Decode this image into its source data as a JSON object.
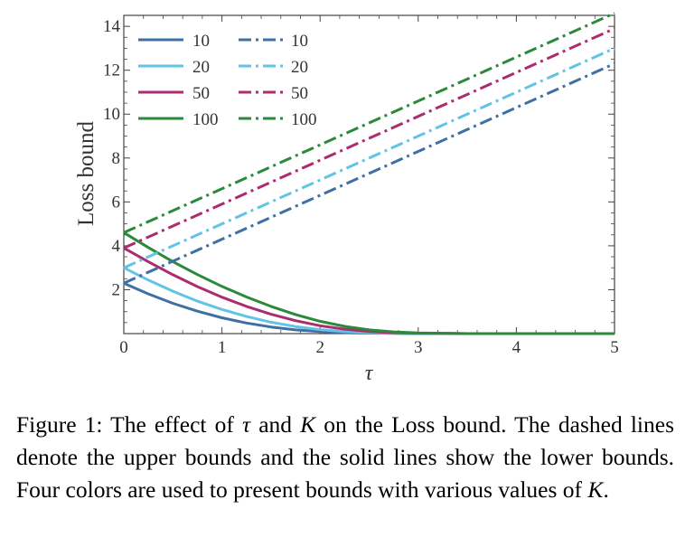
{
  "chart_data": {
    "type": "line",
    "title": "",
    "xlabel": "τ",
    "ylabel": "Loss bound",
    "xlim": [
      0,
      5
    ],
    "ylim": [
      0,
      14.5
    ],
    "xticks": [
      "0",
      "1",
      "2",
      "3",
      "4",
      "5"
    ],
    "yticks": [
      "2",
      "4",
      "6",
      "8",
      "10",
      "12",
      "14"
    ],
    "legend_position": "top-left",
    "colors": {
      "10": "#3f6fa3",
      "20": "#62c3e6",
      "50": "#ad2c6f",
      "100": "#2b8a3a"
    },
    "lower_series": [
      {
        "name": "10",
        "style": "solid",
        "x": [
          0,
          0.25,
          0.5,
          0.75,
          1,
          1.25,
          1.5,
          1.75,
          2,
          2.25,
          2.5,
          2.75,
          3,
          3.5,
          4,
          4.5,
          5
        ],
        "y": [
          2.3,
          1.81,
          1.38,
          1.02,
          0.72,
          0.48,
          0.3,
          0.17,
          0.09,
          0.04,
          0.02,
          0.01,
          0,
          0,
          0,
          0,
          0
        ]
      },
      {
        "name": "20",
        "style": "solid",
        "x": [
          0,
          0.25,
          0.5,
          0.75,
          1,
          1.25,
          1.5,
          1.75,
          2,
          2.25,
          2.5,
          2.75,
          3,
          3.5,
          4,
          4.5,
          5
        ],
        "y": [
          3.0,
          2.44,
          1.93,
          1.48,
          1.1,
          0.78,
          0.52,
          0.32,
          0.18,
          0.09,
          0.04,
          0.02,
          0.01,
          0,
          0,
          0,
          0
        ]
      },
      {
        "name": "50",
        "style": "solid",
        "x": [
          0,
          0.25,
          0.5,
          0.75,
          1,
          1.25,
          1.5,
          1.75,
          2,
          2.25,
          2.5,
          2.75,
          3,
          3.5,
          4,
          4.5,
          5
        ],
        "y": [
          3.9,
          3.27,
          2.68,
          2.14,
          1.66,
          1.24,
          0.88,
          0.59,
          0.36,
          0.2,
          0.1,
          0.04,
          0.02,
          0,
          0,
          0,
          0
        ]
      },
      {
        "name": "100",
        "style": "solid",
        "x": [
          0,
          0.25,
          0.5,
          0.75,
          1,
          1.25,
          1.5,
          1.75,
          2,
          2.25,
          2.5,
          2.75,
          3,
          3.5,
          4,
          4.5,
          5
        ],
        "y": [
          4.6,
          3.92,
          3.28,
          2.69,
          2.15,
          1.67,
          1.24,
          0.87,
          0.56,
          0.33,
          0.17,
          0.08,
          0.03,
          0,
          0,
          0,
          0
        ]
      }
    ],
    "upper_series": [
      {
        "name": "10",
        "style": "dash-dot",
        "x": [
          0,
          5
        ],
        "y": [
          2.3,
          12.3
        ]
      },
      {
        "name": "20",
        "style": "dash-dot",
        "x": [
          0,
          5
        ],
        "y": [
          3.0,
          13.0
        ]
      },
      {
        "name": "50",
        "style": "dash-dot",
        "x": [
          0,
          5
        ],
        "y": [
          3.9,
          13.9
        ]
      },
      {
        "name": "100",
        "style": "dash-dot",
        "x": [
          0,
          5
        ],
        "y": [
          4.6,
          14.6
        ]
      }
    ]
  },
  "caption": {
    "label": "Figure 1:",
    "part1": " The effect of ",
    "tau": "τ",
    "part2": " and ",
    "k1": "K",
    "part3": " on the Loss bound. The dashed lines denote the upper bounds and the solid lines show the lower bounds. Four colors are used to present bounds with various values of ",
    "k2": "K",
    "part4": "."
  }
}
